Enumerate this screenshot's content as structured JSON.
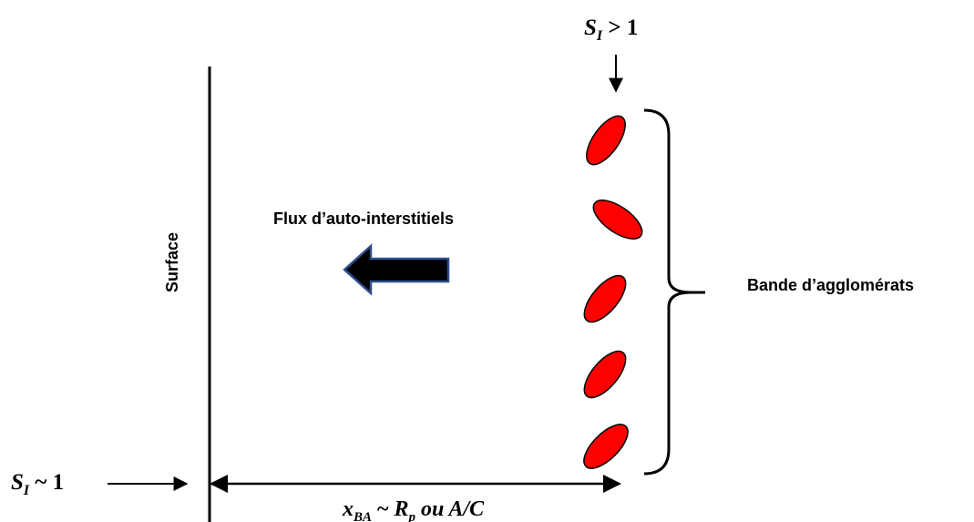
{
  "labels": {
    "surface": "Surface",
    "flux": "Flux d’auto-interstitiels",
    "band": "Bande d’agglomérats"
  },
  "si_top": {
    "symbol": "S",
    "subscript": "I",
    "relation": " > 1"
  },
  "si_left": {
    "symbol": "S",
    "subscript": "I",
    "relation": " ~ 1"
  },
  "distance": {
    "symbol": "x",
    "subscript": "BA",
    "relation": " ~ ",
    "rp": "R",
    "rp_sub": "p",
    "tail": " ou A/C"
  },
  "colors": {
    "cluster_fill": "#ff0000",
    "cluster_stroke": "#000000",
    "arrow_fill": "#000000",
    "arrow_stroke": "#2f4f8f"
  }
}
